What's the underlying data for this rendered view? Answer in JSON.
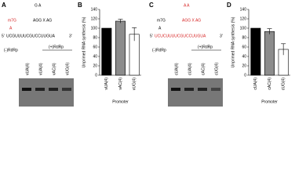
{
  "panel_a": {
    "letter": "A",
    "cap": "m7G",
    "base": "A",
    "loop": "G A",
    "stem": "AGG X AG",
    "sequence": "UCGUUUUCGUCCUUGUA",
    "prime5": "5'",
    "prime3": "3'",
    "enzyme": "(-)RdRp",
    "enzyme_box": "(+)RdRp",
    "lanes": [
      "vUA(4)",
      "vUA(4)",
      "vAC(4)",
      "vUG(4)"
    ]
  },
  "panel_c": {
    "letter": "C",
    "cap": "m7G",
    "base": "A",
    "loop": "A A",
    "stem": "AGG X AG",
    "sequence": "UCUCUUUUCGUCCUUGUA",
    "prime5": "5'",
    "prime3": "3'",
    "enzyme": "(-)RdRp",
    "enzyme_box": "(+)RdRp",
    "lanes": [
      "cUA(4)",
      "cUA(4)",
      "cAC(4)",
      "cUG(4)"
    ]
  },
  "chart_data": [
    {
      "type": "bar",
      "panel_label": "B",
      "y_label": "Unprimed RNA synthesis (%)",
      "x_label": "Promoter",
      "categories": [
        "vUA(4)",
        "vAC(4)",
        "vUG(4)"
      ],
      "values": [
        100,
        115,
        87
      ],
      "errors": [
        null,
        4,
        14
      ],
      "colors": [
        "#000000",
        "#8c8c8c",
        "#ffffff"
      ],
      "ylim": [
        0,
        140
      ],
      "yticks": [
        0,
        20,
        40,
        60,
        80,
        100,
        120,
        140
      ]
    },
    {
      "type": "bar",
      "panel_label": "D",
      "y_label": "Unprimed RNA synthesis (%)",
      "x_label": "Promoter",
      "categories": [
        "cUA(4)",
        "cAC(4)",
        "cUG(4)"
      ],
      "values": [
        100,
        93,
        55
      ],
      "errors": [
        null,
        6,
        12
      ],
      "colors": [
        "#000000",
        "#8c8c8c",
        "#ffffff"
      ],
      "ylim": [
        0,
        140
      ],
      "yticks": [
        0,
        20,
        40,
        60,
        80,
        100,
        120,
        140
      ]
    }
  ]
}
